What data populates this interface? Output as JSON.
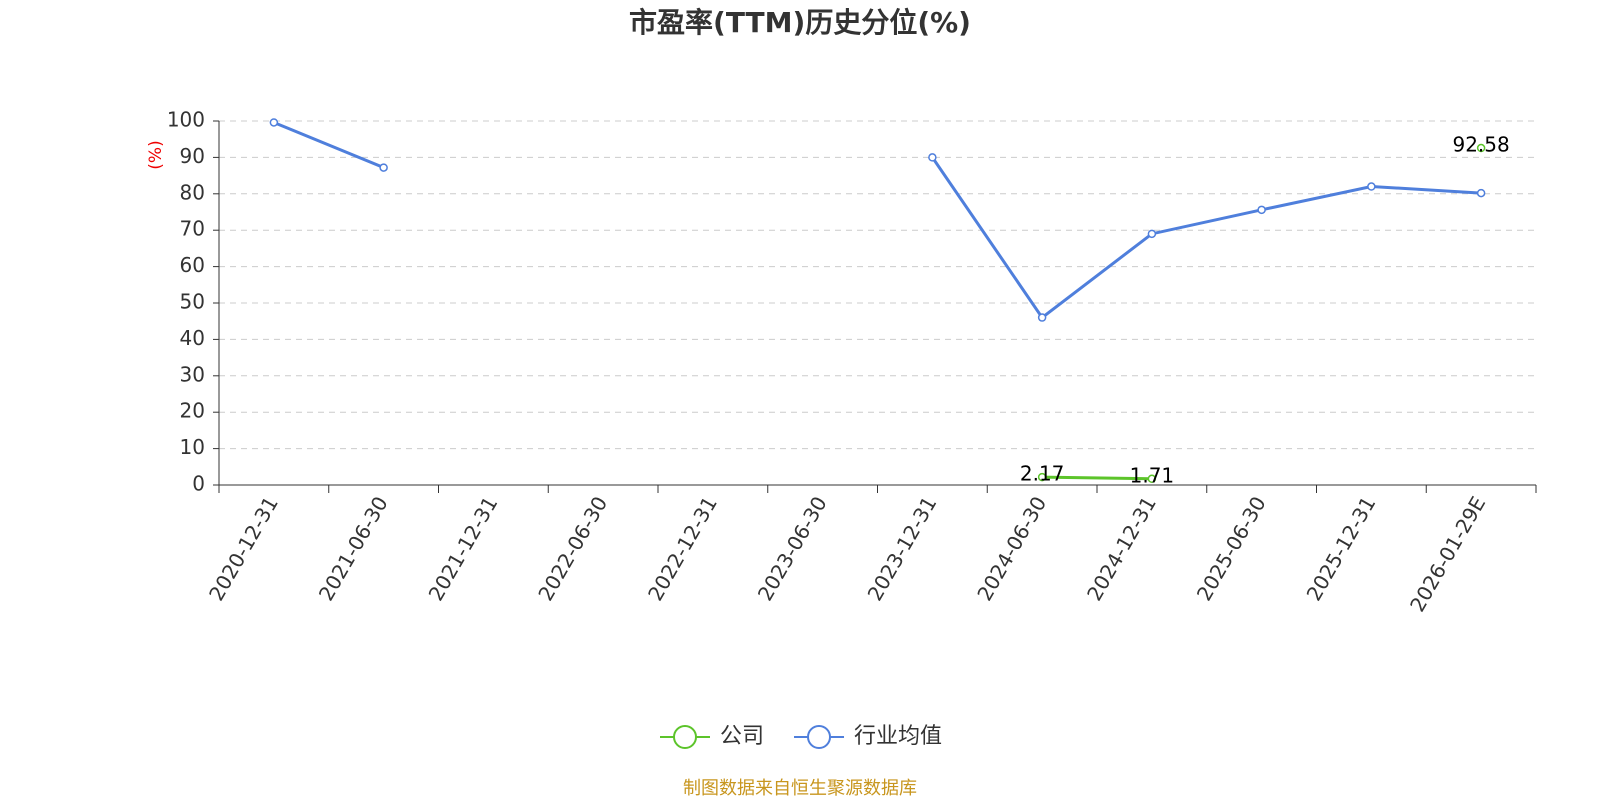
{
  "chart_data": {
    "type": "line",
    "title": "市盈率(TTM)历史分位(%)",
    "y_label": "(%)",
    "categories": [
      "2020-12-31",
      "2021-06-30",
      "2021-12-31",
      "2022-06-30",
      "2022-12-31",
      "2023-06-30",
      "2023-12-31",
      "2024-06-30",
      "2024-12-31",
      "2025-06-30",
      "2025-12-31",
      "2026-01-29E"
    ],
    "series": [
      {
        "name": "公司",
        "color": "#5cc42a",
        "show_labels": true,
        "values": [
          null,
          null,
          null,
          null,
          null,
          null,
          null,
          2.17,
          1.71,
          null,
          null,
          92.58
        ]
      },
      {
        "name": "行业均值",
        "color": "#4f7fdc",
        "show_labels": false,
        "values": [
          99.6,
          87.2,
          null,
          null,
          null,
          null,
          90,
          46,
          69,
          75.6,
          82,
          80.2
        ]
      }
    ],
    "ylim": [
      0,
      100
    ],
    "yticks": [
      0,
      10,
      20,
      30,
      40,
      50,
      60,
      70,
      80,
      90,
      100
    ],
    "grid": true,
    "source": "制图数据来自恒生聚源数据库"
  }
}
